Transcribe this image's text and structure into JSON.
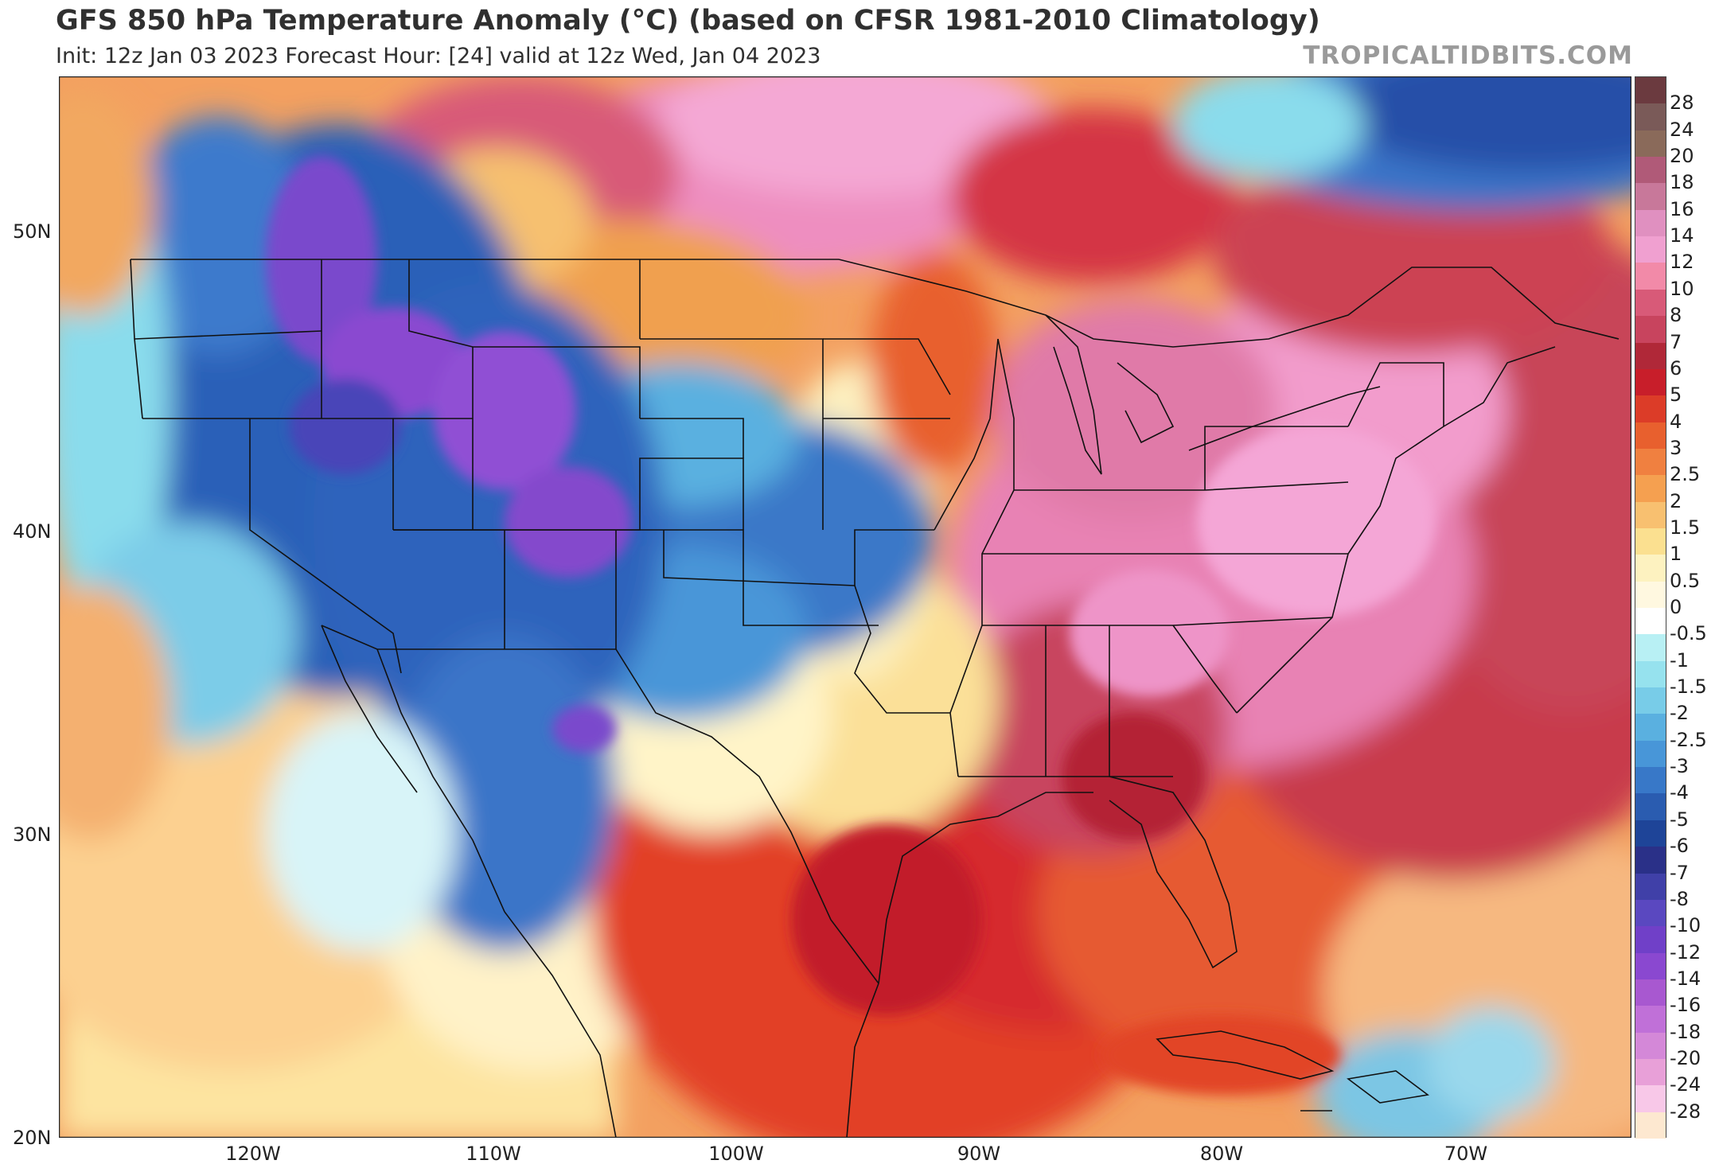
{
  "header": {
    "title": "GFS 850 hPa Temperature Anomaly (°C) (based on CFSR 1981-2010 Climatology)",
    "subtitle": "Init: 12z Jan 03 2023   Forecast Hour: [24]   valid at 12z Wed, Jan 04 2023",
    "brand": "TROPICALTIDBITS.COM"
  },
  "axes": {
    "lat_labels": [
      "50N",
      "40N",
      "30N",
      "20N"
    ],
    "lon_labels": [
      "120W",
      "110W",
      "100W",
      "90W",
      "80W",
      "70W"
    ]
  },
  "colorbar": {
    "labels": [
      "28",
      "24",
      "20",
      "18",
      "16",
      "14",
      "12",
      "10",
      "8",
      "7",
      "6",
      "5",
      "4",
      "3",
      "2.5",
      "2",
      "1.5",
      "1",
      "0.5",
      "0",
      "-0.5",
      "-1",
      "-1.5",
      "-2",
      "-2.5",
      "-3",
      "-4",
      "-5",
      "-6",
      "-7",
      "-8",
      "-10",
      "-12",
      "-14",
      "-16",
      "-18",
      "-20",
      "-24",
      "-28"
    ],
    "colors": [
      "#6b3a3f",
      "#7a5a58",
      "#8a6a5a",
      "#b05a78",
      "#c8789a",
      "#e090c0",
      "#f0a0d0",
      "#f28aa8",
      "#d85a78",
      "#c8445e",
      "#b02838",
      "#c81e2a",
      "#dc3c28",
      "#e8602e",
      "#f08040",
      "#f5a050",
      "#f8c070",
      "#fbe090",
      "#fdf2c0",
      "#fff8e0",
      "#ffffff",
      "#b8f0f4",
      "#96e2ee",
      "#78cce8",
      "#5ab0e0",
      "#4896d8",
      "#3878c8",
      "#2a5cb0",
      "#1e4498",
      "#2a3088",
      "#4040a8",
      "#5a48c0",
      "#7040c8",
      "#8a48d0",
      "#a858d0",
      "#c070d8",
      "#d488d8",
      "#e8a0d8",
      "#f8c8e8",
      "#fde8d0"
    ]
  },
  "map": {
    "description_colors": {
      "warm_east": "#e882b4",
      "deep_red": "#b02838",
      "orange": "#e8602e",
      "cold_west": "#2a5cb0",
      "very_cold": "#7040c8"
    }
  }
}
